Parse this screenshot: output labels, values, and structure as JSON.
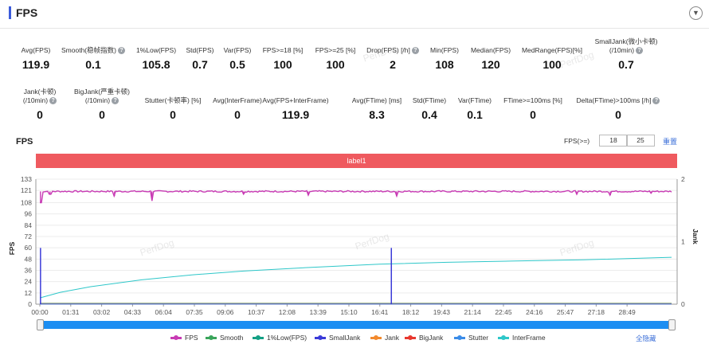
{
  "header": {
    "title": "FPS",
    "collapse_icon": "chevron-down-icon"
  },
  "watermark": "PerfDog",
  "metrics_row1": [
    {
      "label": "Avg(FPS)",
      "value": "119.9",
      "help": false,
      "label2": ""
    },
    {
      "label": "Smooth(稳帧指数)",
      "value": "0.1",
      "help": true,
      "label2": ""
    },
    {
      "label": "1%Low(FPS)",
      "value": "105.8",
      "help": false,
      "label2": ""
    },
    {
      "label": "Std(FPS)",
      "value": "0.7",
      "help": false,
      "label2": ""
    },
    {
      "label": "Var(FPS)",
      "value": "0.5",
      "help": false,
      "label2": ""
    },
    {
      "label": "FPS>=18 [%]",
      "value": "100",
      "help": false,
      "label2": ""
    },
    {
      "label": "FPS>=25 [%]",
      "value": "100",
      "help": false,
      "label2": ""
    },
    {
      "label": "Drop(FPS) [/h]",
      "value": "2",
      "help": true,
      "label2": ""
    },
    {
      "label": "Min(FPS)",
      "value": "108",
      "help": false,
      "label2": ""
    },
    {
      "label": "Median(FPS)",
      "value": "120",
      "help": false,
      "label2": ""
    },
    {
      "label": "MedRange(FPS)[%]",
      "value": "100",
      "help": false,
      "label2": ""
    },
    {
      "label": "SmallJank(微小卡顿)",
      "value": "0.7",
      "help": true,
      "label2": "(/10min)"
    }
  ],
  "metrics_row2": [
    {
      "label": "Jank(卡顿)",
      "value": "0",
      "help": true,
      "label2": "(/10min)"
    },
    {
      "label": "BigJank(严重卡顿)",
      "value": "0",
      "help": true,
      "label2": "(/10min)"
    },
    {
      "label": "Stutter(卡顿率) [%]",
      "value": "0",
      "help": false,
      "label2": ""
    },
    {
      "label": "Avg(InterFrame)",
      "value": "0",
      "help": false,
      "label2": ""
    },
    {
      "label": "Avg(FPS+InterFrame)",
      "value": "119.9",
      "help": false,
      "label2": ""
    },
    {
      "label": "Avg(FTime) [ms]",
      "value": "8.3",
      "help": false,
      "label2": ""
    },
    {
      "label": "Std(FTime)",
      "value": "0.4",
      "help": false,
      "label2": ""
    },
    {
      "label": "Var(FTime)",
      "value": "0.1",
      "help": false,
      "label2": ""
    },
    {
      "label": "FTime>=100ms [%]",
      "value": "0",
      "help": false,
      "label2": ""
    },
    {
      "label": "Delta(FTime)>100ms [/h]",
      "value": "0",
      "help": true,
      "label2": ""
    }
  ],
  "chart_section": {
    "title": "FPS",
    "threshold_label": "FPS(>=)",
    "threshold_values": [
      "18",
      "25"
    ],
    "reset_label": "重置",
    "label_bar": "label1",
    "hide_all_label": "全隐藏"
  },
  "colors": {
    "fps": "#c83bb4",
    "smooth": "#3aa55b",
    "low1": "#14a085",
    "smalljank": "#3b3bd8",
    "jank": "#f28a2e",
    "bigjank": "#e8382f",
    "stutter": "#3b8ce8",
    "interframe": "#2ec7c9",
    "label_bar": "#ef5a5f",
    "slider": "#1c8ef2"
  },
  "chart_data": {
    "type": "line",
    "title": "",
    "xlabel": "",
    "ylabel": "FPS",
    "y2label": "Jank",
    "ylim": [
      0,
      133
    ],
    "y2lim": [
      0,
      2
    ],
    "yticks": [
      0,
      12,
      24,
      36,
      48,
      60,
      72,
      84,
      96,
      108,
      121,
      133
    ],
    "y2ticks": [
      0,
      1,
      2
    ],
    "x_ticks": [
      "00:00",
      "01:31",
      "03:02",
      "04:33",
      "06:04",
      "07:35",
      "09:06",
      "10:37",
      "12:08",
      "13:39",
      "15:10",
      "16:41",
      "18:12",
      "19:43",
      "21:14",
      "22:45",
      "24:16",
      "25:47",
      "27:18",
      "28:49"
    ],
    "x_range_seconds": [
      0,
      1860
    ],
    "legend_position": "bottom",
    "series": [
      {
        "name": "FPS",
        "axis": "left",
        "baseline": 120,
        "dips": [
          [
            2,
            108
          ],
          [
            30,
            117
          ],
          [
            220,
            115
          ],
          [
            330,
            110
          ],
          [
            600,
            117
          ],
          [
            790,
            116
          ],
          [
            1050,
            115
          ],
          [
            1580,
            117
          ],
          [
            1680,
            116
          ],
          [
            1800,
            118
          ]
        ]
      },
      {
        "name": "Smooth",
        "axis": "right",
        "values_const": 0
      },
      {
        "name": "1%Low(FPS)",
        "axis": "left",
        "values_const": 0
      },
      {
        "name": "SmallJank",
        "axis": "right",
        "spikes": [
          [
            2,
            0.9
          ],
          [
            1035,
            0.9
          ]
        ]
      },
      {
        "name": "Jank",
        "axis": "right",
        "values_const": 0
      },
      {
        "name": "BigJank",
        "axis": "right",
        "values_const": 0
      },
      {
        "name": "Stutter",
        "axis": "right",
        "values_const": 0
      },
      {
        "name": "InterFrame",
        "axis": "right",
        "points": [
          [
            0,
            0.1
          ],
          [
            60,
            0.19
          ],
          [
            150,
            0.28
          ],
          [
            300,
            0.39
          ],
          [
            450,
            0.47
          ],
          [
            600,
            0.53
          ],
          [
            800,
            0.59
          ],
          [
            1000,
            0.64
          ],
          [
            1200,
            0.67
          ],
          [
            1400,
            0.69
          ],
          [
            1600,
            0.71
          ],
          [
            1860,
            0.75
          ]
        ]
      }
    ]
  }
}
